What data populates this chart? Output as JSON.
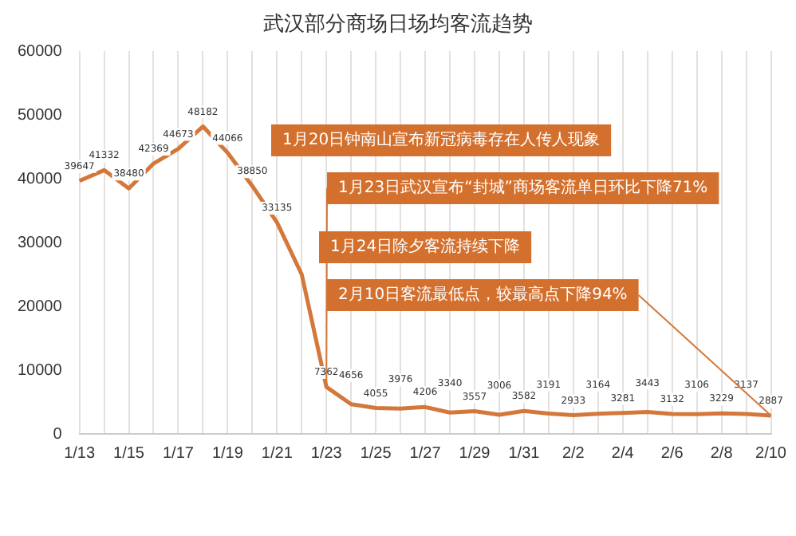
{
  "chart_data": {
    "type": "line",
    "title": "武汉部分商场日场均客流趋势",
    "categories": [
      "1/13",
      null,
      "1/15",
      null,
      "1/17",
      null,
      "1/19",
      null,
      "1/21",
      null,
      "1/23",
      null,
      "1/25",
      null,
      "1/27",
      null,
      "1/29",
      null,
      "1/31",
      null,
      "2/2",
      null,
      "2/4",
      null,
      "2/6",
      null,
      "2/8",
      null,
      "2/10"
    ],
    "series": [
      {
        "color": "#d4773a",
        "values": [
          39647,
          41332,
          38480,
          42369,
          44673,
          48182,
          44066,
          38850,
          33135,
          25000,
          7362,
          4656,
          4055,
          3976,
          4206,
          3340,
          3557,
          3006,
          3582,
          3191,
          2933,
          3164,
          3281,
          3443,
          3132,
          3106,
          3229,
          3137,
          2887
        ],
        "value_labels": [
          "39647",
          "41332",
          "38480",
          "42369",
          "44673",
          "48182",
          "44066",
          "38850",
          "33135",
          null,
          "7362",
          "4656",
          "4055",
          "3976",
          "4206",
          "3340",
          "3557",
          "3006",
          "3582",
          "3191",
          "2933",
          "3164",
          "3281",
          "3443",
          "3132",
          "3106",
          "3229",
          "3137",
          "2887"
        ]
      }
    ],
    "ylim": [
      0,
      60000
    ],
    "yticks": [
      0,
      10000,
      20000,
      30000,
      40000,
      50000,
      60000
    ],
    "grid": "x",
    "legend": false,
    "marker": "none",
    "line_style": "solid",
    "annotations": [
      "1月20日钟南山宣布新冠病毒存在人传人现象",
      {
        "text": "1月23日武汉宣布“封城”商场客流单日环比下降71%",
        "x": "1/23",
        "y": 7362
      },
      "1月24日除夕客流持续下降",
      {
        "text": "2月10日客流最低点，较最高点下降94%",
        "x": "2/10",
        "y": 2887
      }
    ]
  }
}
